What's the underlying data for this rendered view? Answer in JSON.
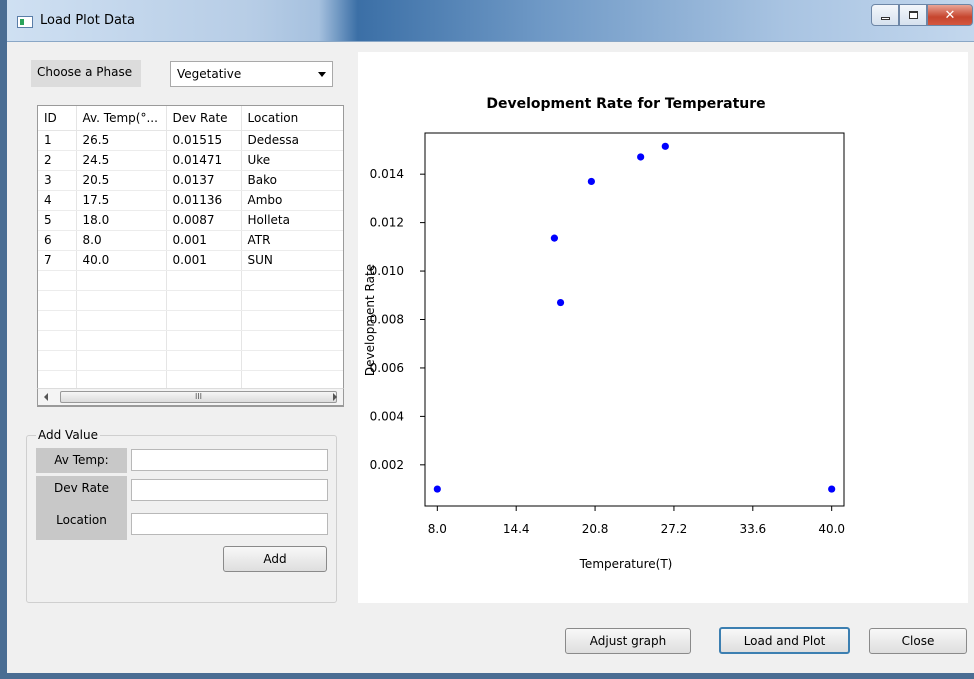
{
  "window": {
    "title": "Load Plot Data"
  },
  "phase": {
    "label": "Choose a Phase",
    "selected": "Vegetative"
  },
  "table": {
    "columns": [
      "ID",
      "Av. Temp(°...",
      "Dev Rate",
      "Location"
    ],
    "rows": [
      [
        "1",
        "26.5",
        "0.01515",
        "Dedessa"
      ],
      [
        "2",
        "24.5",
        "0.01471",
        "Uke"
      ],
      [
        "3",
        "20.5",
        "0.0137",
        "Bako"
      ],
      [
        "4",
        "17.5",
        "0.01136",
        "Ambo"
      ],
      [
        "5",
        "18.0",
        "0.0087",
        "Holleta"
      ],
      [
        "6",
        "8.0",
        "0.001",
        "ATR"
      ],
      [
        "7",
        "40.0",
        "0.001",
        "SUN"
      ]
    ],
    "scroll_thumb": "III"
  },
  "add_value": {
    "title": "Add Value",
    "av_temp_label": "Av Temp:",
    "dev_rate_label": "Dev Rate",
    "location_label": "Location",
    "av_temp_value": "",
    "dev_rate_value": "",
    "location_value": "",
    "add_button": "Add"
  },
  "buttons": {
    "adjust": "Adjust graph",
    "load_plot": "Load and Plot",
    "close": "Close"
  },
  "chart_data": {
    "type": "scatter",
    "title": "Development Rate for Temperature",
    "xlabel": "Temperature(T)",
    "ylabel": "Development Rate",
    "xlim": [
      7.0,
      41.0
    ],
    "ylim": [
      0.0003,
      0.0157
    ],
    "xticks": [
      "8.0",
      "14.4",
      "20.8",
      "27.2",
      "33.6",
      "40.0"
    ],
    "yticks": [
      "0.002",
      "0.004",
      "0.006",
      "0.008",
      "0.010",
      "0.012",
      "0.014"
    ],
    "x": [
      26.5,
      24.5,
      20.5,
      17.5,
      18.0,
      8.0,
      40.0
    ],
    "y": [
      0.01515,
      0.01471,
      0.0137,
      0.01136,
      0.0087,
      0.001,
      0.001
    ],
    "point_color": "#0000ff",
    "grid": false
  }
}
